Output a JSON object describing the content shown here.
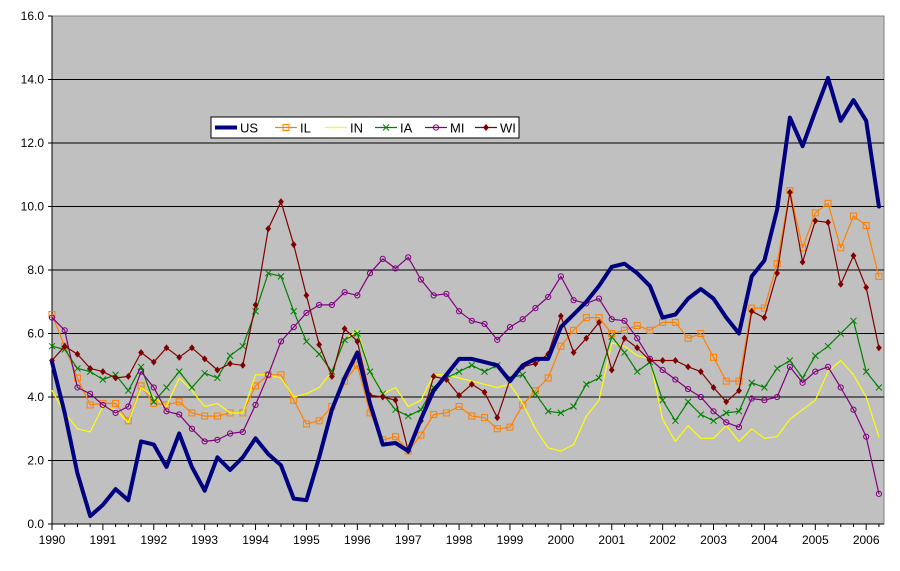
{
  "chart_data": {
    "type": "line",
    "title": "",
    "xlabel": "",
    "ylabel": "",
    "ylim": [
      0,
      16
    ],
    "xlim": [
      1990,
      2006.35
    ],
    "y_ticks": [
      "0.0",
      "2.0",
      "4.0",
      "6.0",
      "8.0",
      "10.0",
      "12.0",
      "14.0",
      "16.0"
    ],
    "x_ticks": [
      "1990",
      "1991",
      "1992",
      "1993",
      "1994",
      "1995",
      "1996",
      "1997",
      "1998",
      "1999",
      "2000",
      "2001",
      "2002",
      "2003",
      "2004",
      "2005",
      "2006"
    ],
    "grid": "horizontal",
    "plot_background": "#c0c0c0",
    "legend_position": "upper-left",
    "x": [
      1990.0,
      1990.25,
      1990.5,
      1990.75,
      1991.0,
      1991.25,
      1991.5,
      1991.75,
      1992.0,
      1992.25,
      1992.5,
      1992.75,
      1993.0,
      1993.25,
      1993.5,
      1993.75,
      1994.0,
      1994.25,
      1994.5,
      1994.75,
      1995.0,
      1995.25,
      1995.5,
      1995.75,
      1996.0,
      1996.25,
      1996.5,
      1996.75,
      1997.0,
      1997.25,
      1997.5,
      1997.75,
      1998.0,
      1998.25,
      1998.5,
      1998.75,
      1999.0,
      1999.25,
      1999.5,
      1999.75,
      2000.0,
      2000.25,
      2000.5,
      2000.75,
      2001.0,
      2001.25,
      2001.5,
      2001.75,
      2002.0,
      2002.25,
      2002.5,
      2002.75,
      2003.0,
      2003.25,
      2003.5,
      2003.75,
      2004.0,
      2004.25,
      2004.5,
      2004.75,
      2005.0,
      2005.25,
      2005.5,
      2005.75,
      2006.0,
      2006.25
    ],
    "series": [
      {
        "name": "US",
        "color": "#000080",
        "width": 4,
        "marker": "none",
        "values": [
          5.1,
          3.5,
          1.6,
          0.25,
          0.6,
          1.1,
          0.75,
          2.6,
          2.5,
          1.8,
          2.85,
          1.8,
          1.05,
          2.1,
          1.7,
          2.1,
          2.7,
          2.2,
          1.85,
          0.8,
          0.75,
          2.1,
          3.6,
          4.6,
          5.4,
          3.8,
          2.5,
          2.55,
          2.3,
          3.3,
          4.2,
          4.7,
          5.2,
          5.2,
          5.1,
          5.0,
          4.5,
          5.0,
          5.2,
          5.2,
          6.2,
          6.6,
          7.0,
          7.5,
          8.1,
          8.2,
          7.9,
          7.5,
          6.5,
          6.6,
          7.1,
          7.4,
          7.1,
          6.5,
          6.0,
          7.8,
          8.3,
          9.9,
          12.8,
          11.9,
          13.0,
          14.05,
          12.7,
          13.35,
          12.7,
          10.0
        ]
      },
      {
        "name": "IL",
        "color": "#ff8000",
        "width": 1.2,
        "marker": "square",
        "values": [
          6.6,
          5.6,
          4.6,
          3.75,
          3.8,
          3.8,
          3.25,
          4.35,
          3.8,
          3.75,
          3.85,
          3.5,
          3.4,
          3.4,
          3.5,
          3.5,
          4.35,
          4.7,
          4.7,
          3.9,
          3.15,
          3.25,
          3.7,
          4.5,
          5.0,
          3.5,
          2.65,
          2.75,
          2.3,
          2.8,
          3.45,
          3.5,
          3.7,
          3.4,
          3.35,
          3.0,
          3.05,
          3.75,
          4.2,
          4.6,
          5.6,
          6.1,
          6.5,
          6.5,
          6.0,
          6.1,
          6.25,
          6.1,
          6.35,
          6.35,
          5.85,
          6.0,
          5.25,
          4.5,
          4.5,
          6.8,
          6.8,
          8.2,
          10.5,
          8.7,
          9.8,
          10.1,
          8.7,
          9.7,
          9.4,
          7.8
        ]
      },
      {
        "name": "IN",
        "color": "#ffff00",
        "width": 1.2,
        "marker": "none",
        "values": [
          4.2,
          3.5,
          3.0,
          2.9,
          3.7,
          3.6,
          3.2,
          4.3,
          4.0,
          3.7,
          4.6,
          4.2,
          3.7,
          3.8,
          3.5,
          3.5,
          4.7,
          4.7,
          4.6,
          4.0,
          4.1,
          4.3,
          4.8,
          5.8,
          6.1,
          4.8,
          4.1,
          4.3,
          3.7,
          3.9,
          4.7,
          4.7,
          4.6,
          4.5,
          4.4,
          4.3,
          4.4,
          3.8,
          3.0,
          2.4,
          2.3,
          2.5,
          3.4,
          3.9,
          5.7,
          5.6,
          5.3,
          5.2,
          3.3,
          2.6,
          3.1,
          2.7,
          2.7,
          3.1,
          2.6,
          3.0,
          2.7,
          2.75,
          3.3,
          3.6,
          3.9,
          4.8,
          5.15,
          4.7,
          4.0,
          2.75
        ]
      },
      {
        "name": "IA",
        "color": "#008000",
        "width": 1.2,
        "marker": "x",
        "values": [
          5.6,
          5.5,
          4.9,
          4.8,
          4.55,
          4.7,
          4.2,
          4.95,
          3.85,
          4.3,
          4.8,
          4.3,
          4.75,
          4.6,
          5.3,
          5.6,
          6.7,
          7.9,
          7.8,
          6.7,
          5.75,
          5.35,
          4.8,
          5.8,
          6.0,
          4.8,
          4.1,
          3.6,
          3.4,
          3.6,
          4.3,
          4.6,
          4.8,
          5.0,
          4.8,
          5.0,
          4.6,
          4.7,
          4.1,
          3.55,
          3.5,
          3.7,
          4.4,
          4.6,
          5.9,
          5.4,
          4.8,
          5.1,
          3.9,
          3.25,
          3.85,
          3.45,
          3.25,
          3.5,
          3.55,
          4.45,
          4.3,
          4.9,
          5.15,
          4.6,
          5.3,
          5.6,
          6.0,
          6.4,
          4.8,
          4.3
        ]
      },
      {
        "name": "MI",
        "color": "#800080",
        "width": 1.2,
        "marker": "circle",
        "values": [
          6.5,
          6.1,
          4.3,
          4.1,
          3.75,
          3.5,
          3.7,
          4.8,
          4.3,
          3.55,
          3.45,
          3.0,
          2.6,
          2.65,
          2.85,
          2.9,
          3.75,
          4.7,
          5.75,
          6.2,
          6.65,
          6.9,
          6.9,
          7.3,
          7.2,
          7.9,
          8.35,
          8.05,
          8.4,
          7.7,
          7.2,
          7.25,
          6.7,
          6.4,
          6.3,
          5.8,
          6.2,
          6.45,
          6.8,
          7.15,
          7.8,
          7.05,
          6.95,
          7.1,
          6.45,
          6.4,
          5.85,
          5.2,
          4.85,
          4.55,
          4.25,
          4.0,
          3.55,
          3.2,
          3.05,
          3.95,
          3.9,
          4.0,
          4.95,
          4.45,
          4.8,
          4.95,
          4.3,
          3.6,
          2.75,
          0.95
        ]
      },
      {
        "name": "WI",
        "color": "#800000",
        "width": 1.2,
        "marker": "diamond",
        "values": [
          5.15,
          5.6,
          5.35,
          4.9,
          4.8,
          4.6,
          4.65,
          5.4,
          5.1,
          5.55,
          5.25,
          5.55,
          5.2,
          4.85,
          5.05,
          5.0,
          6.9,
          9.3,
          10.15,
          8.8,
          7.2,
          5.65,
          4.65,
          6.15,
          5.75,
          4.05,
          4.0,
          3.9,
          2.3,
          3.25,
          4.65,
          4.55,
          4.05,
          4.4,
          4.15,
          3.35,
          4.55,
          4.95,
          5.05,
          5.35,
          6.55,
          5.4,
          5.85,
          6.35,
          4.85,
          5.85,
          5.55,
          5.15,
          5.15,
          5.15,
          4.95,
          4.8,
          4.3,
          3.85,
          4.2,
          6.7,
          6.5,
          7.9,
          10.45,
          8.25,
          9.55,
          9.5,
          7.55,
          8.45,
          7.45,
          5.55
        ]
      }
    ]
  }
}
